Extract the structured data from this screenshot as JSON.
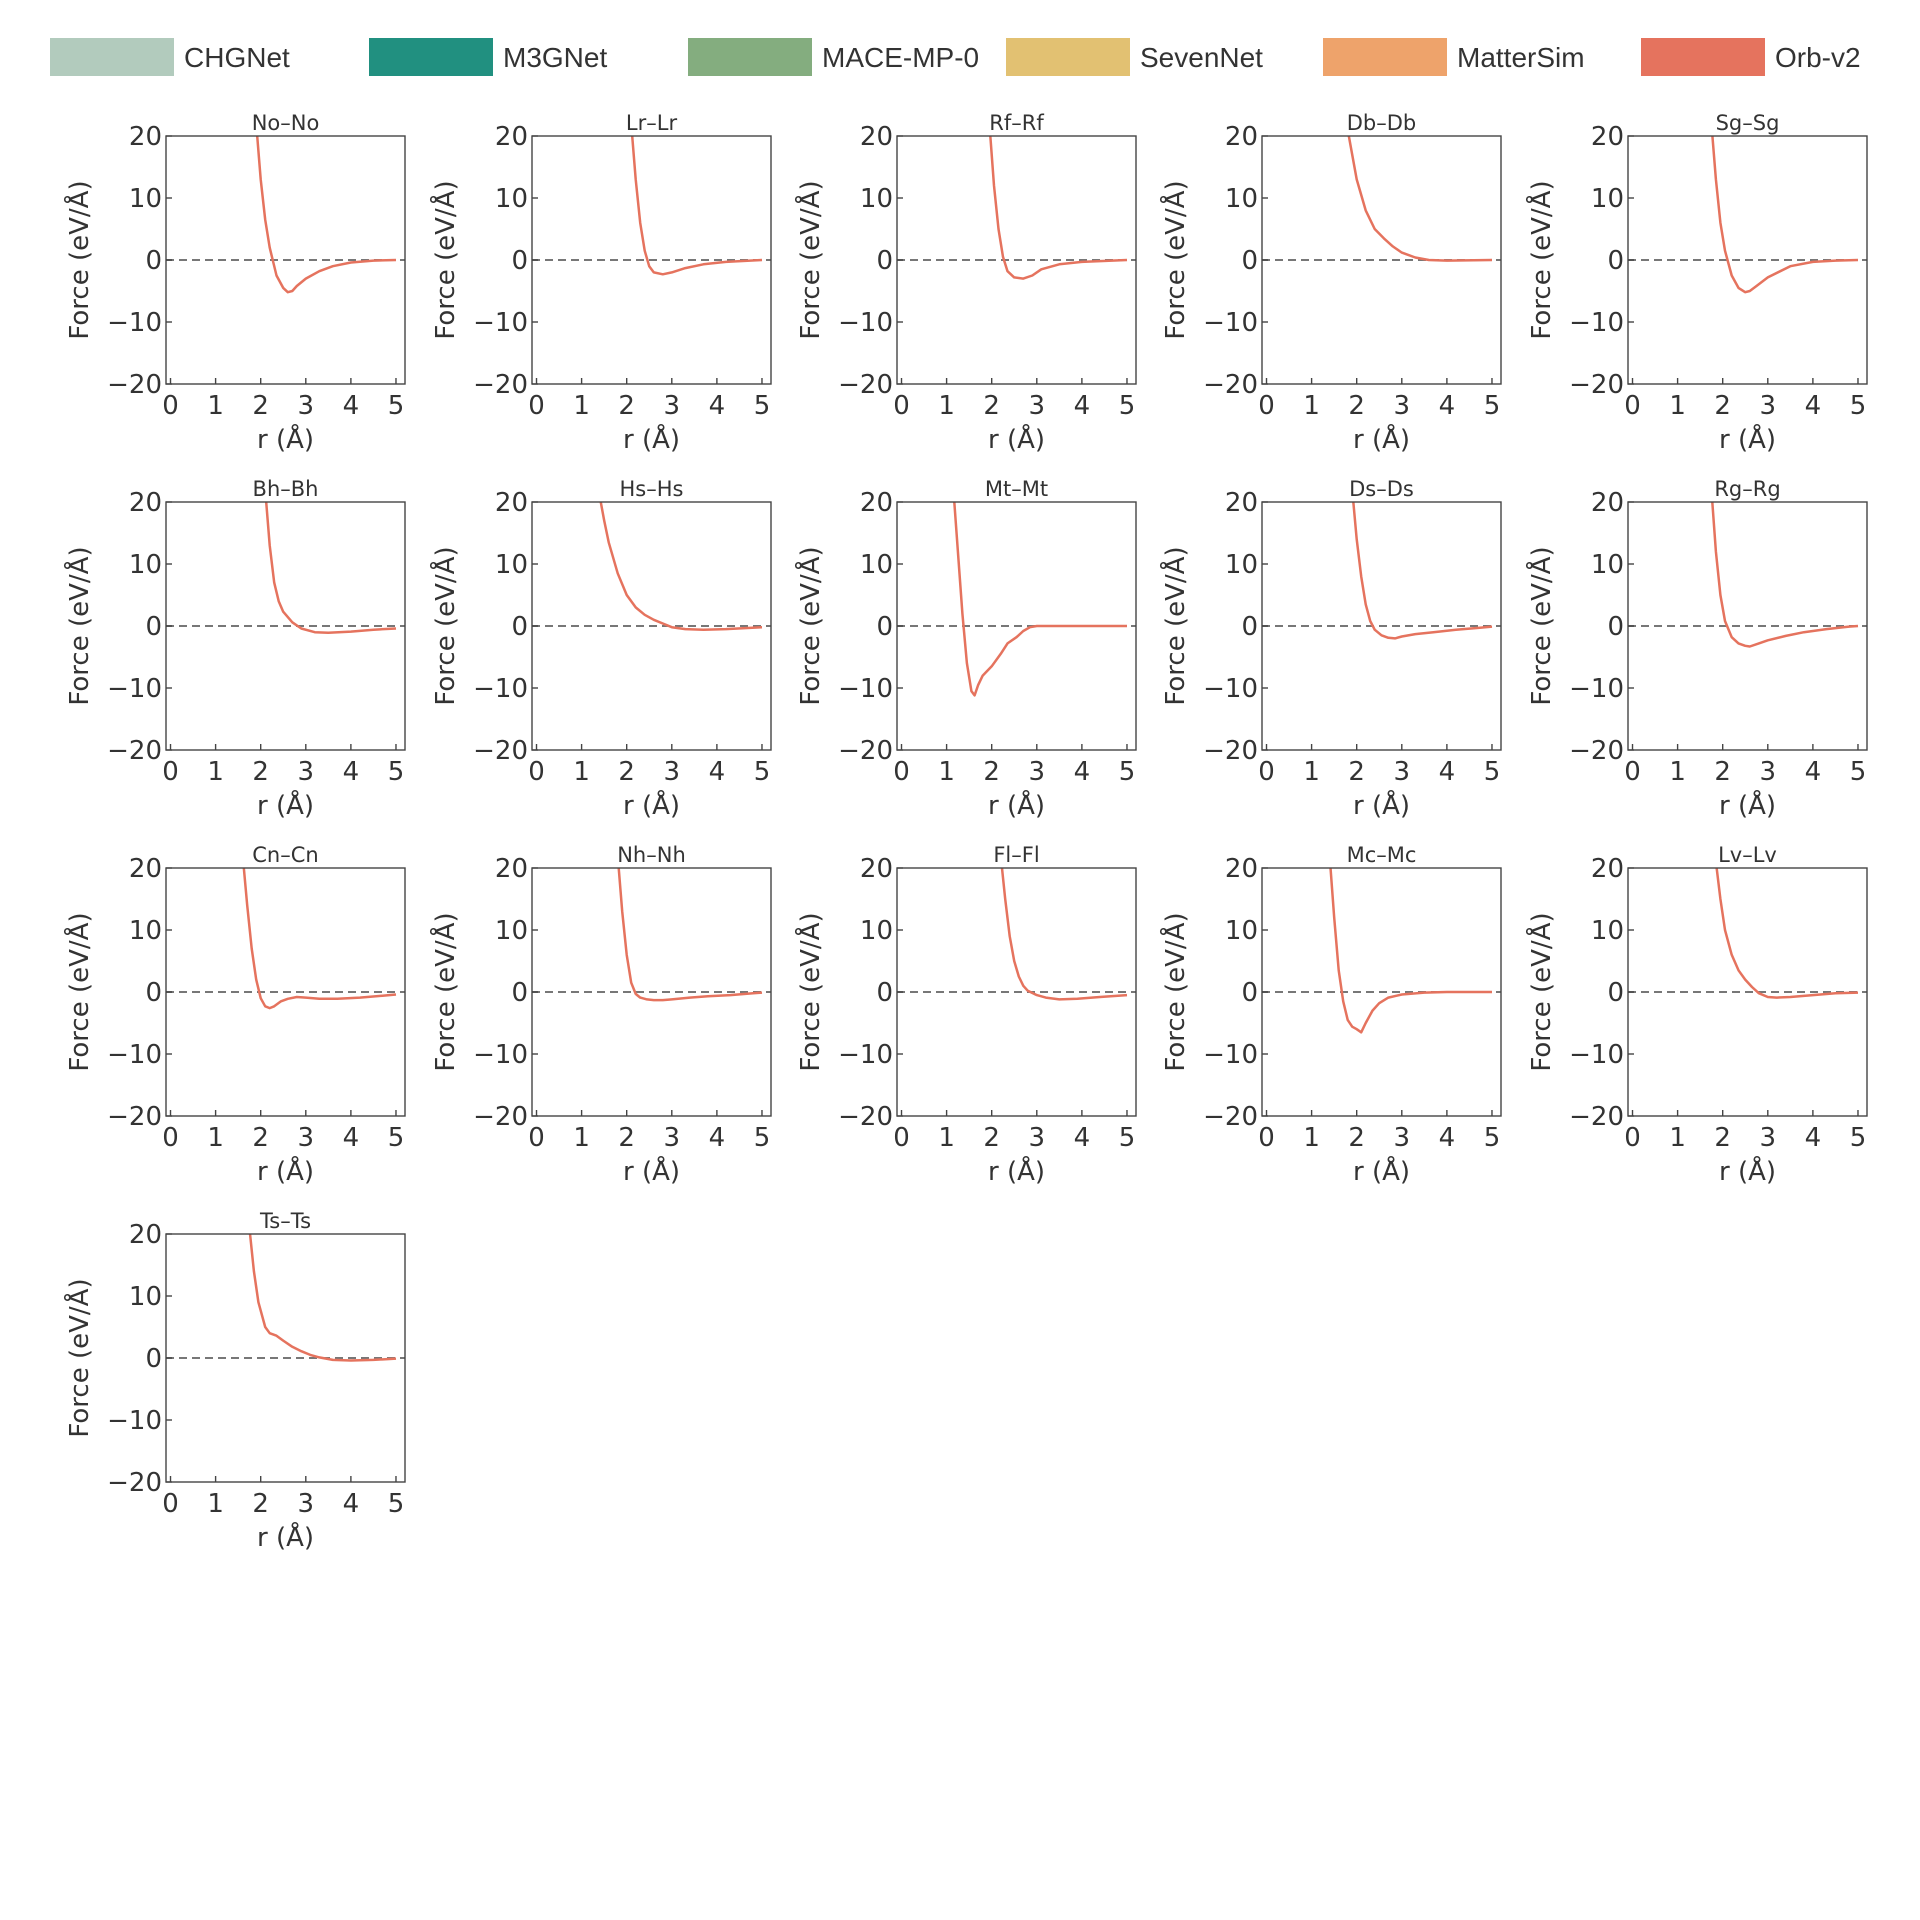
{
  "legend": [
    {
      "name": "CHGNet",
      "color": "#b2cbbd"
    },
    {
      "name": "M3GNet",
      "color": "#219080"
    },
    {
      "name": "MACE-MP-0",
      "color": "#84ad7f"
    },
    {
      "name": "SevenNet",
      "color": "#e2c172"
    },
    {
      "name": "MatterSim",
      "color": "#eea36b"
    },
    {
      "name": "Orb-v2",
      "color": "#e5735e"
    }
  ],
  "chart_data": [
    {
      "type": "line",
      "title": "No–No",
      "xlabel": "r (Å)",
      "ylabel": "Force (eV/Å)",
      "xlim": [
        -0.1,
        5.2
      ],
      "ylim": [
        -20,
        20
      ],
      "xticks": [
        "0",
        "1",
        "2",
        "3",
        "4",
        "5"
      ],
      "yticks": [
        "20",
        "10",
        "0",
        "−10",
        "−20"
      ],
      "grid": false,
      "series": [
        {
          "name": "Orb-v2",
          "color": "#e5735e",
          "x": [
            1.9,
            2.0,
            2.1,
            2.2,
            2.35,
            2.5,
            2.6,
            2.7,
            2.8,
            3.0,
            3.3,
            3.6,
            4.0,
            4.5,
            5.0
          ],
          "y": [
            22,
            13,
            6.5,
            2,
            -2.5,
            -4.5,
            -5.2,
            -5,
            -4.2,
            -3,
            -1.8,
            -1,
            -0.4,
            -0.1,
            0
          ]
        }
      ]
    },
    {
      "type": "line",
      "title": "Lr–Lr",
      "xlabel": "r (Å)",
      "ylabel": "Force (eV/Å)",
      "xlim": [
        -0.1,
        5.2
      ],
      "ylim": [
        -20,
        20
      ],
      "xticks": [
        "0",
        "1",
        "2",
        "3",
        "4",
        "5"
      ],
      "yticks": [
        "20",
        "10",
        "0",
        "−10",
        "−20"
      ],
      "grid": false,
      "series": [
        {
          "name": "Orb-v2",
          "color": "#e5735e",
          "x": [
            2.1,
            2.2,
            2.3,
            2.4,
            2.5,
            2.6,
            2.8,
            3.0,
            3.3,
            3.7,
            4.2,
            5.0
          ],
          "y": [
            22,
            13,
            6,
            1.5,
            -1,
            -2,
            -2.3,
            -2,
            -1.3,
            -0.7,
            -0.3,
            0
          ]
        }
      ]
    },
    {
      "type": "line",
      "title": "Rf–Rf",
      "xlabel": "r (Å)",
      "ylabel": "Force (eV/Å)",
      "xlim": [
        -0.1,
        5.2
      ],
      "ylim": [
        -20,
        20
      ],
      "xticks": [
        "0",
        "1",
        "2",
        "3",
        "4",
        "5"
      ],
      "yticks": [
        "20",
        "10",
        "0",
        "−10",
        "−20"
      ],
      "grid": false,
      "series": [
        {
          "name": "Orb-v2",
          "color": "#e5735e",
          "x": [
            1.95,
            2.05,
            2.15,
            2.25,
            2.35,
            2.5,
            2.7,
            2.9,
            3.1,
            3.5,
            4.0,
            5.0
          ],
          "y": [
            22,
            12,
            5,
            0.5,
            -1.8,
            -2.8,
            -3,
            -2.5,
            -1.5,
            -0.7,
            -0.3,
            0
          ]
        }
      ]
    },
    {
      "type": "line",
      "title": "Db–Db",
      "xlabel": "r (Å)",
      "ylabel": "Force (eV/Å)",
      "xlim": [
        -0.1,
        5.2
      ],
      "ylim": [
        -20,
        20
      ],
      "xticks": [
        "0",
        "1",
        "2",
        "3",
        "4",
        "5"
      ],
      "yticks": [
        "20",
        "10",
        "0",
        "−10",
        "−20"
      ],
      "grid": false,
      "series": [
        {
          "name": "Orb-v2",
          "color": "#e5735e",
          "x": [
            1.8,
            1.9,
            2.0,
            2.2,
            2.4,
            2.6,
            2.8,
            3.0,
            3.3,
            3.6,
            4.0,
            5.0
          ],
          "y": [
            21,
            17,
            13,
            8,
            5,
            3.5,
            2.2,
            1.2,
            0.4,
            0,
            -0.1,
            0
          ]
        }
      ]
    },
    {
      "type": "line",
      "title": "Sg–Sg",
      "xlabel": "r (Å)",
      "ylabel": "Force (eV/Å)",
      "xlim": [
        -0.1,
        5.2
      ],
      "ylim": [
        -20,
        20
      ],
      "xticks": [
        "0",
        "1",
        "2",
        "3",
        "4",
        "5"
      ],
      "yticks": [
        "20",
        "10",
        "0",
        "−10",
        "−20"
      ],
      "grid": false,
      "series": [
        {
          "name": "Orb-v2",
          "color": "#e5735e",
          "x": [
            1.75,
            1.85,
            1.95,
            2.05,
            2.2,
            2.35,
            2.5,
            2.6,
            2.75,
            3.0,
            3.5,
            4.0,
            4.5,
            5.0
          ],
          "y": [
            22,
            13,
            6,
            1.5,
            -2.5,
            -4.5,
            -5.2,
            -5,
            -4.2,
            -2.8,
            -1,
            -0.3,
            -0.1,
            0
          ]
        }
      ]
    },
    {
      "type": "line",
      "title": "Bh–Bh",
      "xlabel": "r (Å)",
      "ylabel": "Force (eV/Å)",
      "xlim": [
        -0.1,
        5.2
      ],
      "ylim": [
        -20,
        20
      ],
      "xticks": [
        "0",
        "1",
        "2",
        "3",
        "4",
        "5"
      ],
      "yticks": [
        "20",
        "10",
        "0",
        "−10",
        "−20"
      ],
      "grid": false,
      "series": [
        {
          "name": "Orb-v2",
          "color": "#e5735e",
          "x": [
            2.1,
            2.2,
            2.3,
            2.4,
            2.5,
            2.7,
            2.9,
            3.2,
            3.5,
            4.0,
            4.5,
            5.0
          ],
          "y": [
            22,
            13,
            7,
            4,
            2.3,
            0.6,
            -0.4,
            -1,
            -1.1,
            -0.9,
            -0.6,
            -0.4
          ]
        }
      ]
    },
    {
      "type": "line",
      "title": "Hs–Hs",
      "xlabel": "r (Å)",
      "ylabel": "Force (eV/Å)",
      "xlim": [
        -0.1,
        5.2
      ],
      "ylim": [
        -20,
        20
      ],
      "xticks": [
        "0",
        "1",
        "2",
        "3",
        "4",
        "5"
      ],
      "yticks": [
        "20",
        "10",
        "0",
        "−10",
        "−20"
      ],
      "grid": false,
      "series": [
        {
          "name": "Orb-v2",
          "color": "#e5735e",
          "x": [
            1.4,
            1.5,
            1.6,
            1.8,
            2.0,
            2.2,
            2.4,
            2.6,
            2.8,
            3.0,
            3.3,
            3.7,
            4.2,
            5.0
          ],
          "y": [
            21,
            17,
            13.5,
            8.5,
            5,
            3,
            1.8,
            1,
            0.4,
            -0.2,
            -0.5,
            -0.6,
            -0.5,
            -0.2
          ]
        }
      ]
    },
    {
      "type": "line",
      "title": "Mt–Mt",
      "xlabel": "r (Å)",
      "ylabel": "Force (eV/Å)",
      "xlim": [
        -0.1,
        5.2
      ],
      "ylim": [
        -20,
        20
      ],
      "xticks": [
        "0",
        "1",
        "2",
        "3",
        "4",
        "5"
      ],
      "yticks": [
        "20",
        "10",
        "0",
        "−10",
        "−20"
      ],
      "grid": false,
      "series": [
        {
          "name": "Orb-v2",
          "color": "#e5735e",
          "x": [
            1.15,
            1.25,
            1.35,
            1.45,
            1.55,
            1.62,
            1.7,
            1.8,
            2.0,
            2.2,
            2.35,
            2.55,
            2.7,
            2.85,
            3.0,
            3.5,
            4.0,
            5.0
          ],
          "y": [
            22,
            12,
            2,
            -6,
            -10.5,
            -11.2,
            -9.5,
            -8,
            -6.5,
            -4.5,
            -2.8,
            -1.8,
            -0.8,
            -0.2,
            0,
            0,
            0,
            0
          ]
        }
      ]
    },
    {
      "type": "line",
      "title": "Ds–Ds",
      "xlabel": "r (Å)",
      "ylabel": "Force (eV/Å)",
      "xlim": [
        -0.1,
        5.2
      ],
      "ylim": [
        -20,
        20
      ],
      "xticks": [
        "0",
        "1",
        "2",
        "3",
        "4",
        "5"
      ],
      "yticks": [
        "20",
        "10",
        "0",
        "−10",
        "−20"
      ],
      "grid": false,
      "series": [
        {
          "name": "Orb-v2",
          "color": "#e5735e",
          "x": [
            1.9,
            2.0,
            2.1,
            2.2,
            2.3,
            2.4,
            2.55,
            2.7,
            2.85,
            3.0,
            3.3,
            3.7,
            4.2,
            4.7,
            5.0
          ],
          "y": [
            22,
            14,
            8,
            3.5,
            0.8,
            -0.6,
            -1.5,
            -1.9,
            -2,
            -1.7,
            -1.3,
            -1,
            -0.6,
            -0.3,
            -0.1
          ]
        }
      ]
    },
    {
      "type": "line",
      "title": "Rg–Rg",
      "xlabel": "r (Å)",
      "ylabel": "Force (eV/Å)",
      "xlim": [
        -0.1,
        5.2
      ],
      "ylim": [
        -20,
        20
      ],
      "xticks": [
        "0",
        "1",
        "2",
        "3",
        "4",
        "5"
      ],
      "yticks": [
        "20",
        "10",
        "0",
        "−10",
        "−20"
      ],
      "grid": false,
      "series": [
        {
          "name": "Orb-v2",
          "color": "#e5735e",
          "x": [
            1.75,
            1.85,
            1.95,
            2.05,
            2.2,
            2.35,
            2.5,
            2.6,
            2.8,
            3.0,
            3.4,
            3.8,
            4.3,
            4.8,
            5.0
          ],
          "y": [
            22,
            12,
            5,
            0.8,
            -1.8,
            -2.8,
            -3.2,
            -3.3,
            -2.8,
            -2.3,
            -1.6,
            -1,
            -0.5,
            -0.1,
            0
          ]
        }
      ]
    },
    {
      "type": "line",
      "title": "Cn–Cn",
      "xlabel": "r (Å)",
      "ylabel": "Force (eV/Å)",
      "xlim": [
        -0.1,
        5.2
      ],
      "ylim": [
        -20,
        20
      ],
      "xticks": [
        "0",
        "1",
        "2",
        "3",
        "4",
        "5"
      ],
      "yticks": [
        "20",
        "10",
        "0",
        "−10",
        "−20"
      ],
      "grid": false,
      "series": [
        {
          "name": "Orb-v2",
          "color": "#e5735e",
          "x": [
            1.6,
            1.7,
            1.8,
            1.9,
            2.0,
            2.1,
            2.2,
            2.3,
            2.45,
            2.6,
            2.8,
            3.0,
            3.3,
            3.7,
            4.2,
            4.7,
            5.0
          ],
          "y": [
            22,
            14,
            7,
            2,
            -1,
            -2.3,
            -2.6,
            -2.3,
            -1.5,
            -1.1,
            -0.8,
            -0.9,
            -1.1,
            -1.1,
            -0.9,
            -0.6,
            -0.4
          ]
        }
      ]
    },
    {
      "type": "line",
      "title": "Nh–Nh",
      "xlabel": "r (Å)",
      "ylabel": "Force (eV/Å)",
      "xlim": [
        -0.1,
        5.2
      ],
      "ylim": [
        -20,
        20
      ],
      "xticks": [
        "0",
        "1",
        "2",
        "3",
        "4",
        "5"
      ],
      "yticks": [
        "20",
        "10",
        "0",
        "−10",
        "−20"
      ],
      "grid": false,
      "series": [
        {
          "name": "Orb-v2",
          "color": "#e5735e",
          "x": [
            1.8,
            1.9,
            2.0,
            2.1,
            2.2,
            2.3,
            2.45,
            2.6,
            2.8,
            3.0,
            3.4,
            3.8,
            4.3,
            4.8,
            5.0
          ],
          "y": [
            22,
            13,
            6,
            1.5,
            -0.3,
            -0.9,
            -1.2,
            -1.3,
            -1.3,
            -1.2,
            -0.9,
            -0.7,
            -0.5,
            -0.2,
            -0.1
          ]
        }
      ]
    },
    {
      "type": "line",
      "title": "Fl–Fl",
      "xlabel": "r (Å)",
      "ylabel": "Force (eV/Å)",
      "xlim": [
        -0.1,
        5.2
      ],
      "ylim": [
        -20,
        20
      ],
      "xticks": [
        "0",
        "1",
        "2",
        "3",
        "4",
        "5"
      ],
      "yticks": [
        "20",
        "10",
        "0",
        "−10",
        "−20"
      ],
      "grid": false,
      "series": [
        {
          "name": "Orb-v2",
          "color": "#e5735e",
          "x": [
            2.2,
            2.3,
            2.4,
            2.5,
            2.6,
            2.7,
            2.8,
            3.0,
            3.2,
            3.5,
            3.9,
            4.4,
            5.0
          ],
          "y": [
            22,
            15,
            9,
            5,
            2.5,
            1,
            0.2,
            -0.5,
            -0.9,
            -1.2,
            -1.1,
            -0.8,
            -0.5
          ]
        }
      ]
    },
    {
      "type": "line",
      "title": "Mc–Mc",
      "xlabel": "r (Å)",
      "ylabel": "Force (eV/Å)",
      "xlim": [
        -0.1,
        5.2
      ],
      "ylim": [
        -20,
        20
      ],
      "xticks": [
        "0",
        "1",
        "2",
        "3",
        "4",
        "5"
      ],
      "yticks": [
        "20",
        "10",
        "0",
        "−10",
        "−20"
      ],
      "grid": false,
      "series": [
        {
          "name": "Orb-v2",
          "color": "#e5735e",
          "x": [
            1.4,
            1.5,
            1.6,
            1.7,
            1.8,
            1.9,
            2.0,
            2.1,
            2.2,
            2.35,
            2.5,
            2.7,
            3.0,
            3.5,
            4.0,
            5.0
          ],
          "y": [
            22,
            12,
            3.5,
            -1.5,
            -4.5,
            -5.6,
            -6,
            -6.5,
            -5,
            -3,
            -1.8,
            -0.9,
            -0.4,
            -0.1,
            0,
            0
          ]
        }
      ]
    },
    {
      "type": "line",
      "title": "Lv–Lv",
      "xlabel": "r (Å)",
      "ylabel": "Force (eV/Å)",
      "xlim": [
        -0.1,
        5.2
      ],
      "ylim": [
        -20,
        20
      ],
      "xticks": [
        "0",
        "1",
        "2",
        "3",
        "4",
        "5"
      ],
      "yticks": [
        "20",
        "10",
        "0",
        "−10",
        "−20"
      ],
      "grid": false,
      "series": [
        {
          "name": "Orb-v2",
          "color": "#e5735e",
          "x": [
            1.85,
            1.95,
            2.05,
            2.2,
            2.35,
            2.5,
            2.65,
            2.8,
            3.0,
            3.2,
            3.5,
            4.0,
            4.5,
            5.0
          ],
          "y": [
            21,
            15,
            10,
            6,
            3.5,
            2,
            0.8,
            -0.2,
            -0.8,
            -0.9,
            -0.8,
            -0.5,
            -0.2,
            -0.1
          ]
        }
      ]
    },
    {
      "type": "line",
      "title": "Ts–Ts",
      "xlabel": "r (Å)",
      "ylabel": "Force (eV/Å)",
      "xlim": [
        -0.1,
        5.2
      ],
      "ylim": [
        -20,
        20
      ],
      "xticks": [
        "0",
        "1",
        "2",
        "3",
        "4",
        "5"
      ],
      "yticks": [
        "20",
        "10",
        "0",
        "−10",
        "−20"
      ],
      "grid": false,
      "series": [
        {
          "name": "Orb-v2",
          "color": "#e5735e",
          "x": [
            1.75,
            1.85,
            1.95,
            2.1,
            2.2,
            2.35,
            2.5,
            2.7,
            2.9,
            3.1,
            3.3,
            3.6,
            4.0,
            4.5,
            5.0
          ],
          "y": [
            21,
            14,
            9,
            5,
            4,
            3.6,
            2.8,
            1.8,
            1.1,
            0.5,
            0.1,
            -0.3,
            -0.4,
            -0.3,
            -0.1
          ]
        }
      ]
    }
  ]
}
